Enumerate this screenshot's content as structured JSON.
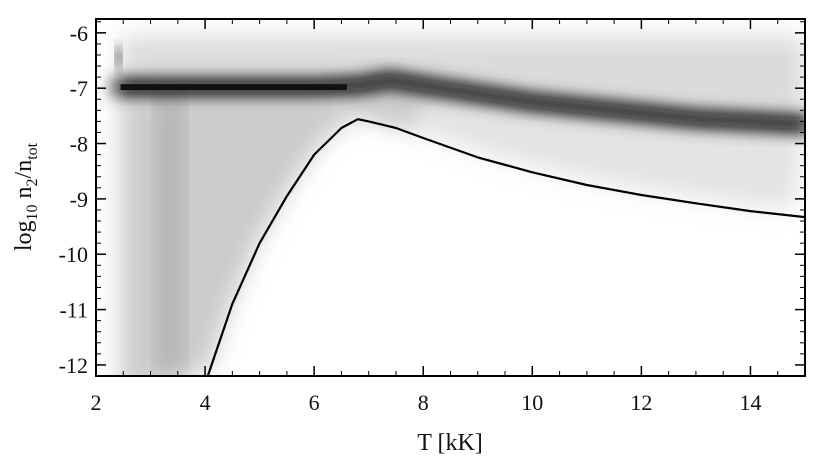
{
  "chart_data": {
    "type": "heatmap",
    "title": "",
    "xlabel": "T [kK]",
    "ylabel_parts": {
      "base": "log",
      "base_sub": "10",
      "num": " n",
      "num_sub": "2",
      "slash": "/n",
      "den_sub": "tot"
    },
    "xlim": [
      2,
      15
    ],
    "ylim": [
      -12.2,
      -5.75
    ],
    "xticks": [
      2,
      4,
      6,
      8,
      10,
      12,
      14
    ],
    "yticks": [
      -12,
      -11,
      -10,
      -9,
      -8,
      -7,
      -6
    ],
    "xminor_step": 0.5,
    "yminor_step": 0.2,
    "colormap": "grayscale (white = low density, black = high density)",
    "density_band": {
      "description": "dark band of high point density",
      "x": [
        2.45,
        3,
        4,
        5,
        6,
        6.8,
        7.4,
        8,
        9,
        10,
        11,
        12,
        13,
        14,
        15
      ],
      "y": [
        -6.98,
        -6.98,
        -6.98,
        -6.98,
        -6.98,
        -6.95,
        -6.85,
        -6.95,
        -7.1,
        -7.25,
        -7.35,
        -7.45,
        -7.55,
        -7.6,
        -7.65
      ]
    },
    "curve": {
      "color": "#000000",
      "x": [
        4.05,
        4.5,
        5.0,
        5.5,
        6.0,
        6.5,
        6.8,
        7.0,
        7.5,
        8.0,
        9.0,
        10.0,
        11.0,
        12.0,
        13.0,
        14.0,
        15.0
      ],
      "y": [
        -12.2,
        -10.9,
        -9.8,
        -8.95,
        -8.2,
        -7.72,
        -7.56,
        -7.6,
        -7.72,
        -7.9,
        -8.25,
        -8.52,
        -8.75,
        -8.93,
        -9.08,
        -9.22,
        -9.33
      ]
    },
    "colors": {
      "curve": "#000000",
      "band": "#111111",
      "frame": "#000000"
    }
  }
}
